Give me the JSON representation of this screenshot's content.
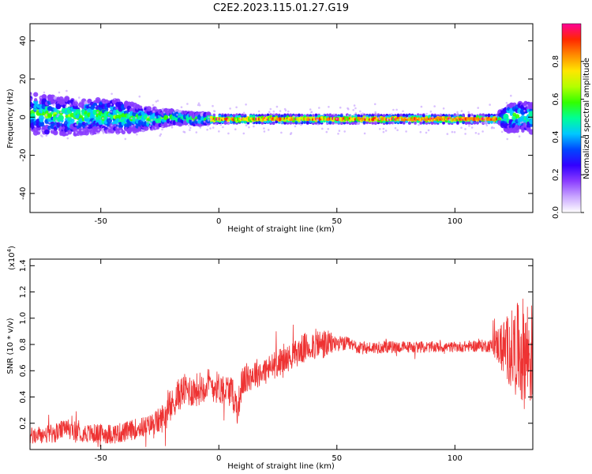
{
  "title": "C2E2.2023.115.01.27.G19",
  "chart_data": [
    {
      "type": "heatmap",
      "xlabel": "Height of straight line (km)",
      "ylabel": "Frequency (Hz)",
      "xlim": [
        -80,
        133
      ],
      "ylim": [
        -50,
        49
      ],
      "x_ticks": [
        -50,
        0,
        50,
        100
      ],
      "y_ticks": [
        -40,
        -20,
        0,
        20,
        40
      ],
      "colorbar": {
        "label": "Normalized spectral amplitude",
        "range": [
          0.0,
          1.0
        ],
        "ticks": [
          0.0,
          0.2,
          0.4,
          0.6,
          0.8
        ],
        "tick_labels": [
          "0.0",
          "0.2",
          "0.4",
          "0.6",
          "0.8"
        ],
        "colors": [
          "#ffffff",
          "#c9a6ff",
          "#8a3cff",
          "#3200ff",
          "#0046ff",
          "#00c8ff",
          "#00ff96",
          "#32ff00",
          "#b4ff00",
          "#ffe600",
          "#ff8c00",
          "#ff2800",
          "#ff0096"
        ]
      },
      "ridge_center_hz": [
        [
          -80,
          2
        ],
        [
          -70,
          1
        ],
        [
          -60,
          0
        ],
        [
          -50,
          1
        ],
        [
          -40,
          0
        ],
        [
          -30,
          -1
        ],
        [
          -20,
          0
        ],
        [
          -10,
          -1
        ],
        [
          0,
          -1
        ],
        [
          10,
          -1
        ],
        [
          20,
          -1
        ],
        [
          30,
          -1
        ],
        [
          40,
          -1
        ],
        [
          50,
          -1
        ],
        [
          60,
          -1
        ],
        [
          70,
          -1
        ],
        [
          80,
          -1
        ],
        [
          90,
          -1
        ],
        [
          100,
          -1
        ],
        [
          110,
          -1
        ],
        [
          118,
          -1
        ],
        [
          125,
          0
        ],
        [
          133,
          0
        ]
      ],
      "ridge_halfwidth_hz": [
        [
          -80,
          9
        ],
        [
          -60,
          8
        ],
        [
          -40,
          7
        ],
        [
          -30,
          5
        ],
        [
          -20,
          3
        ],
        [
          0,
          2
        ],
        [
          50,
          2
        ],
        [
          100,
          2
        ],
        [
          118,
          2
        ],
        [
          122,
          6
        ],
        [
          133,
          7
        ]
      ]
    },
    {
      "type": "line",
      "xlabel": "Height of straight line (km)",
      "ylabel": "SNR (10 * v/v)",
      "yscale_label": "(x10",
      "yscale_exp": "4",
      "yscale_close": ")",
      "xlim": [
        -80,
        133
      ],
      "ylim": [
        0,
        1.45
      ],
      "x_ticks": [
        -50,
        0,
        50,
        100
      ],
      "y_ticks": [
        0.2,
        0.4,
        0.6,
        0.8,
        1.0,
        1.2,
        1.4
      ],
      "y_tick_labels": [
        "0.2",
        "0.4",
        "0.6",
        "0.8",
        "1.0",
        "1.2",
        "1.4"
      ],
      "series": [
        {
          "color": "#ee3333",
          "points": [
            [
              -80,
              0.1
            ],
            [
              -70,
              0.12
            ],
            [
              -65,
              0.16
            ],
            [
              -60,
              0.14
            ],
            [
              -55,
              0.12
            ],
            [
              -50,
              0.12
            ],
            [
              -45,
              0.12
            ],
            [
              -40,
              0.13
            ],
            [
              -35,
              0.16
            ],
            [
              -30,
              0.18
            ],
            [
              -25,
              0.22
            ],
            [
              -22,
              0.28
            ],
            [
              -20,
              0.33
            ],
            [
              -18,
              0.4
            ],
            [
              -15,
              0.45
            ],
            [
              -10,
              0.45
            ],
            [
              -5,
              0.5
            ],
            [
              0,
              0.47
            ],
            [
              5,
              0.45
            ],
            [
              8,
              0.32
            ],
            [
              10,
              0.52
            ],
            [
              15,
              0.58
            ],
            [
              20,
              0.6
            ],
            [
              25,
              0.66
            ],
            [
              30,
              0.7
            ],
            [
              35,
              0.76
            ],
            [
              40,
              0.8
            ],
            [
              45,
              0.8
            ],
            [
              50,
              0.81
            ],
            [
              55,
              0.8
            ],
            [
              60,
              0.77
            ],
            [
              70,
              0.78
            ],
            [
              80,
              0.78
            ],
            [
              90,
              0.78
            ],
            [
              100,
              0.78
            ],
            [
              110,
              0.79
            ],
            [
              115,
              0.79
            ],
            [
              118,
              0.8
            ],
            [
              120,
              0.78
            ],
            [
              125,
              0.76
            ],
            [
              130,
              0.74
            ],
            [
              133,
              0.72
            ]
          ],
          "noise_amplitude": [
            [
              -80,
              0.07
            ],
            [
              -30,
              0.08
            ],
            [
              -22,
              0.12
            ],
            [
              -10,
              0.13
            ],
            [
              10,
              0.12
            ],
            [
              30,
              0.1
            ],
            [
              38,
              0.12
            ],
            [
              45,
              0.12
            ],
            [
              50,
              0.06
            ],
            [
              60,
              0.05
            ],
            [
              100,
              0.04
            ],
            [
              115,
              0.05
            ],
            [
              120,
              0.2
            ],
            [
              126,
              0.35
            ],
            [
              130,
              0.45
            ],
            [
              133,
              0.4
            ]
          ]
        }
      ]
    }
  ]
}
